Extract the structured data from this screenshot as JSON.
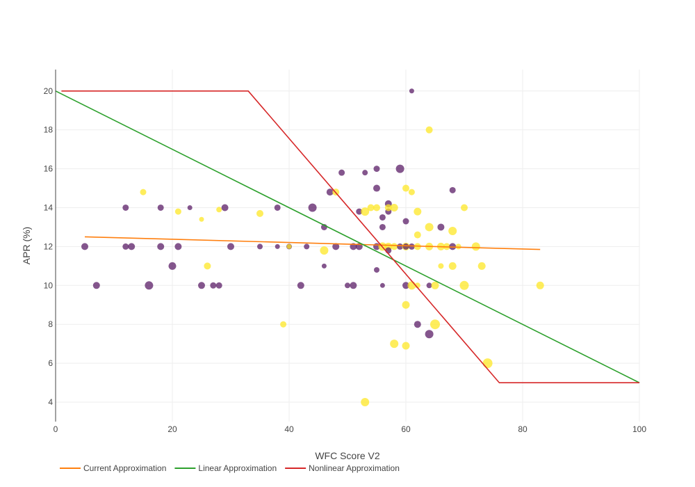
{
  "chart_data": {
    "type": "scatter",
    "title": "",
    "xlabel": "WFC Score V2",
    "ylabel": "APR (%)",
    "xlim": [
      0,
      100
    ],
    "ylim": [
      3,
      21.1
    ],
    "x_ticks": [
      "0",
      "20",
      "40",
      "60",
      "80",
      "100"
    ],
    "y_ticks": [
      "4",
      "6",
      "8",
      "10",
      "12",
      "14",
      "16",
      "18",
      "20"
    ],
    "grid": true,
    "legend_position": "bottom-left",
    "colors": {
      "purple": "#5b1e67",
      "yellow": "#fde725",
      "current": "#ff7f0e",
      "linear": "#2ca02c",
      "nonlinear": "#d62728"
    },
    "scatter_points": [
      {
        "x": 5,
        "y": 12,
        "size": 5,
        "color": "purple"
      },
      {
        "x": 7,
        "y": 10,
        "size": 5,
        "color": "purple"
      },
      {
        "x": 12,
        "y": 14,
        "size": 4.5,
        "color": "purple"
      },
      {
        "x": 12,
        "y": 12,
        "size": 4.5,
        "color": "purple"
      },
      {
        "x": 13,
        "y": 12,
        "size": 5,
        "color": "purple"
      },
      {
        "x": 15,
        "y": 14.8,
        "size": 4.5,
        "color": "yellow"
      },
      {
        "x": 16,
        "y": 10,
        "size": 6,
        "color": "purple"
      },
      {
        "x": 18,
        "y": 14,
        "size": 4.5,
        "color": "purple"
      },
      {
        "x": 18,
        "y": 12,
        "size": 5,
        "color": "purple"
      },
      {
        "x": 20,
        "y": 11,
        "size": 5.5,
        "color": "purple"
      },
      {
        "x": 21,
        "y": 13.8,
        "size": 4.5,
        "color": "yellow"
      },
      {
        "x": 21,
        "y": 12,
        "size": 5,
        "color": "purple"
      },
      {
        "x": 23,
        "y": 14,
        "size": 3.5,
        "color": "purple"
      },
      {
        "x": 25,
        "y": 13.4,
        "size": 3.5,
        "color": "yellow"
      },
      {
        "x": 25,
        "y": 10,
        "size": 5,
        "color": "purple"
      },
      {
        "x": 26,
        "y": 11,
        "size": 5,
        "color": "yellow"
      },
      {
        "x": 27,
        "y": 10,
        "size": 4.5,
        "color": "purple"
      },
      {
        "x": 28,
        "y": 10,
        "size": 4.5,
        "color": "purple"
      },
      {
        "x": 28,
        "y": 13.9,
        "size": 4,
        "color": "yellow"
      },
      {
        "x": 29,
        "y": 14,
        "size": 5,
        "color": "purple"
      },
      {
        "x": 30,
        "y": 12,
        "size": 5,
        "color": "purple"
      },
      {
        "x": 35,
        "y": 13.7,
        "size": 5,
        "color": "yellow"
      },
      {
        "x": 35,
        "y": 12,
        "size": 4,
        "color": "purple"
      },
      {
        "x": 38,
        "y": 14,
        "size": 4.5,
        "color": "purple"
      },
      {
        "x": 38,
        "y": 12,
        "size": 3.5,
        "color": "purple"
      },
      {
        "x": 39,
        "y": 8,
        "size": 4.5,
        "color": "yellow"
      },
      {
        "x": 40,
        "y": 12,
        "size": 4,
        "color": "purple"
      },
      {
        "x": 40,
        "y": 12,
        "size": 3.5,
        "color": "yellow"
      },
      {
        "x": 42,
        "y": 10,
        "size": 5,
        "color": "purple"
      },
      {
        "x": 43,
        "y": 12,
        "size": 4,
        "color": "purple"
      },
      {
        "x": 44,
        "y": 14,
        "size": 6,
        "color": "purple"
      },
      {
        "x": 46,
        "y": 13,
        "size": 4.5,
        "color": "purple"
      },
      {
        "x": 46,
        "y": 11,
        "size": 3.5,
        "color": "purple"
      },
      {
        "x": 46,
        "y": 11.8,
        "size": 6,
        "color": "yellow"
      },
      {
        "x": 47,
        "y": 14.8,
        "size": 5,
        "color": "purple"
      },
      {
        "x": 48,
        "y": 14.8,
        "size": 5,
        "color": "yellow"
      },
      {
        "x": 48,
        "y": 12,
        "size": 5,
        "color": "purple"
      },
      {
        "x": 49,
        "y": 15.8,
        "size": 4.5,
        "color": "purple"
      },
      {
        "x": 50,
        "y": 10,
        "size": 4,
        "color": "purple"
      },
      {
        "x": 51,
        "y": 10,
        "size": 5,
        "color": "purple"
      },
      {
        "x": 51,
        "y": 12,
        "size": 5,
        "color": "purple"
      },
      {
        "x": 52,
        "y": 13.8,
        "size": 4.5,
        "color": "purple"
      },
      {
        "x": 52,
        "y": 12,
        "size": 5,
        "color": "purple"
      },
      {
        "x": 53,
        "y": 15.8,
        "size": 4,
        "color": "purple"
      },
      {
        "x": 53,
        "y": 13.8,
        "size": 6,
        "color": "yellow"
      },
      {
        "x": 53,
        "y": 4,
        "size": 6,
        "color": "yellow"
      },
      {
        "x": 54,
        "y": 14,
        "size": 5,
        "color": "yellow"
      },
      {
        "x": 55,
        "y": 16,
        "size": 4.5,
        "color": "purple"
      },
      {
        "x": 55,
        "y": 15,
        "size": 5,
        "color": "purple"
      },
      {
        "x": 55,
        "y": 14,
        "size": 5,
        "color": "yellow"
      },
      {
        "x": 55,
        "y": 12,
        "size": 5,
        "color": "purple"
      },
      {
        "x": 55,
        "y": 10.8,
        "size": 4,
        "color": "purple"
      },
      {
        "x": 56,
        "y": 13.5,
        "size": 4.5,
        "color": "purple"
      },
      {
        "x": 56,
        "y": 13,
        "size": 4.5,
        "color": "purple"
      },
      {
        "x": 56,
        "y": 12,
        "size": 6,
        "color": "yellow"
      },
      {
        "x": 56,
        "y": 10,
        "size": 3.5,
        "color": "purple"
      },
      {
        "x": 57,
        "y": 14.2,
        "size": 5,
        "color": "purple"
      },
      {
        "x": 57,
        "y": 13.8,
        "size": 4.5,
        "color": "purple"
      },
      {
        "x": 57,
        "y": 14,
        "size": 5,
        "color": "yellow"
      },
      {
        "x": 57,
        "y": 12,
        "size": 5.5,
        "color": "yellow"
      },
      {
        "x": 57,
        "y": 11.8,
        "size": 4.5,
        "color": "purple"
      },
      {
        "x": 58,
        "y": 14,
        "size": 5.5,
        "color": "yellow"
      },
      {
        "x": 58,
        "y": 12,
        "size": 5,
        "color": "yellow"
      },
      {
        "x": 58,
        "y": 7,
        "size": 6,
        "color": "yellow"
      },
      {
        "x": 59,
        "y": 16,
        "size": 6,
        "color": "purple"
      },
      {
        "x": 59,
        "y": 12,
        "size": 4.5,
        "color": "purple"
      },
      {
        "x": 60,
        "y": 15,
        "size": 5,
        "color": "yellow"
      },
      {
        "x": 60,
        "y": 13.3,
        "size": 4.5,
        "color": "purple"
      },
      {
        "x": 60,
        "y": 12,
        "size": 5.5,
        "color": "yellow"
      },
      {
        "x": 60,
        "y": 12,
        "size": 4.5,
        "color": "purple"
      },
      {
        "x": 60,
        "y": 10,
        "size": 5,
        "color": "purple"
      },
      {
        "x": 60,
        "y": 9,
        "size": 5.5,
        "color": "yellow"
      },
      {
        "x": 60,
        "y": 6.9,
        "size": 5.5,
        "color": "yellow"
      },
      {
        "x": 61,
        "y": 20,
        "size": 3.5,
        "color": "purple"
      },
      {
        "x": 61,
        "y": 14.8,
        "size": 4.5,
        "color": "yellow"
      },
      {
        "x": 61,
        "y": 12,
        "size": 4.5,
        "color": "purple"
      },
      {
        "x": 61,
        "y": 10,
        "size": 6,
        "color": "yellow"
      },
      {
        "x": 62,
        "y": 13.8,
        "size": 5.5,
        "color": "yellow"
      },
      {
        "x": 62,
        "y": 12.6,
        "size": 5,
        "color": "yellow"
      },
      {
        "x": 62,
        "y": 12,
        "size": 5,
        "color": "yellow"
      },
      {
        "x": 62,
        "y": 10,
        "size": 4,
        "color": "yellow"
      },
      {
        "x": 62,
        "y": 8,
        "size": 5,
        "color": "purple"
      },
      {
        "x": 64,
        "y": 18,
        "size": 5,
        "color": "yellow"
      },
      {
        "x": 64,
        "y": 13,
        "size": 6,
        "color": "yellow"
      },
      {
        "x": 64,
        "y": 12,
        "size": 5.5,
        "color": "yellow"
      },
      {
        "x": 64,
        "y": 10,
        "size": 4,
        "color": "purple"
      },
      {
        "x": 64,
        "y": 7.5,
        "size": 6,
        "color": "purple"
      },
      {
        "x": 65,
        "y": 10,
        "size": 5.5,
        "color": "yellow"
      },
      {
        "x": 65,
        "y": 8,
        "size": 7,
        "color": "yellow"
      },
      {
        "x": 66,
        "y": 13,
        "size": 5,
        "color": "purple"
      },
      {
        "x": 66,
        "y": 12,
        "size": 5.5,
        "color": "yellow"
      },
      {
        "x": 66,
        "y": 11,
        "size": 4,
        "color": "yellow"
      },
      {
        "x": 67,
        "y": 12,
        "size": 5,
        "color": "yellow"
      },
      {
        "x": 68,
        "y": 14.9,
        "size": 4.5,
        "color": "purple"
      },
      {
        "x": 68,
        "y": 12.8,
        "size": 6,
        "color": "yellow"
      },
      {
        "x": 68,
        "y": 12,
        "size": 5,
        "color": "purple"
      },
      {
        "x": 68,
        "y": 11,
        "size": 5.5,
        "color": "yellow"
      },
      {
        "x": 69,
        "y": 12,
        "size": 4,
        "color": "yellow"
      },
      {
        "x": 70,
        "y": 14,
        "size": 5,
        "color": "yellow"
      },
      {
        "x": 70,
        "y": 10,
        "size": 6.5,
        "color": "yellow"
      },
      {
        "x": 72,
        "y": 12,
        "size": 6,
        "color": "yellow"
      },
      {
        "x": 73,
        "y": 11,
        "size": 5.5,
        "color": "yellow"
      },
      {
        "x": 74,
        "y": 6,
        "size": 7,
        "color": "yellow"
      },
      {
        "x": 83,
        "y": 10,
        "size": 5.5,
        "color": "yellow"
      }
    ],
    "series": [
      {
        "name": "Current Approximation",
        "color": "current",
        "x": [
          5,
          83
        ],
        "y": [
          12.5,
          11.85
        ]
      },
      {
        "name": "Linear Approximation",
        "color": "linear",
        "x": [
          0,
          100
        ],
        "y": [
          20,
          5
        ]
      },
      {
        "name": "Nonlinear Approximation",
        "color": "nonlinear",
        "x": [
          1,
          33,
          76,
          100
        ],
        "y": [
          20,
          20,
          5,
          5
        ]
      }
    ],
    "legend": [
      {
        "label": "Current Approximation",
        "color": "current"
      },
      {
        "label": "Linear Approximation",
        "color": "linear"
      },
      {
        "label": "Nonlinear Approximation",
        "color": "nonlinear"
      }
    ]
  }
}
